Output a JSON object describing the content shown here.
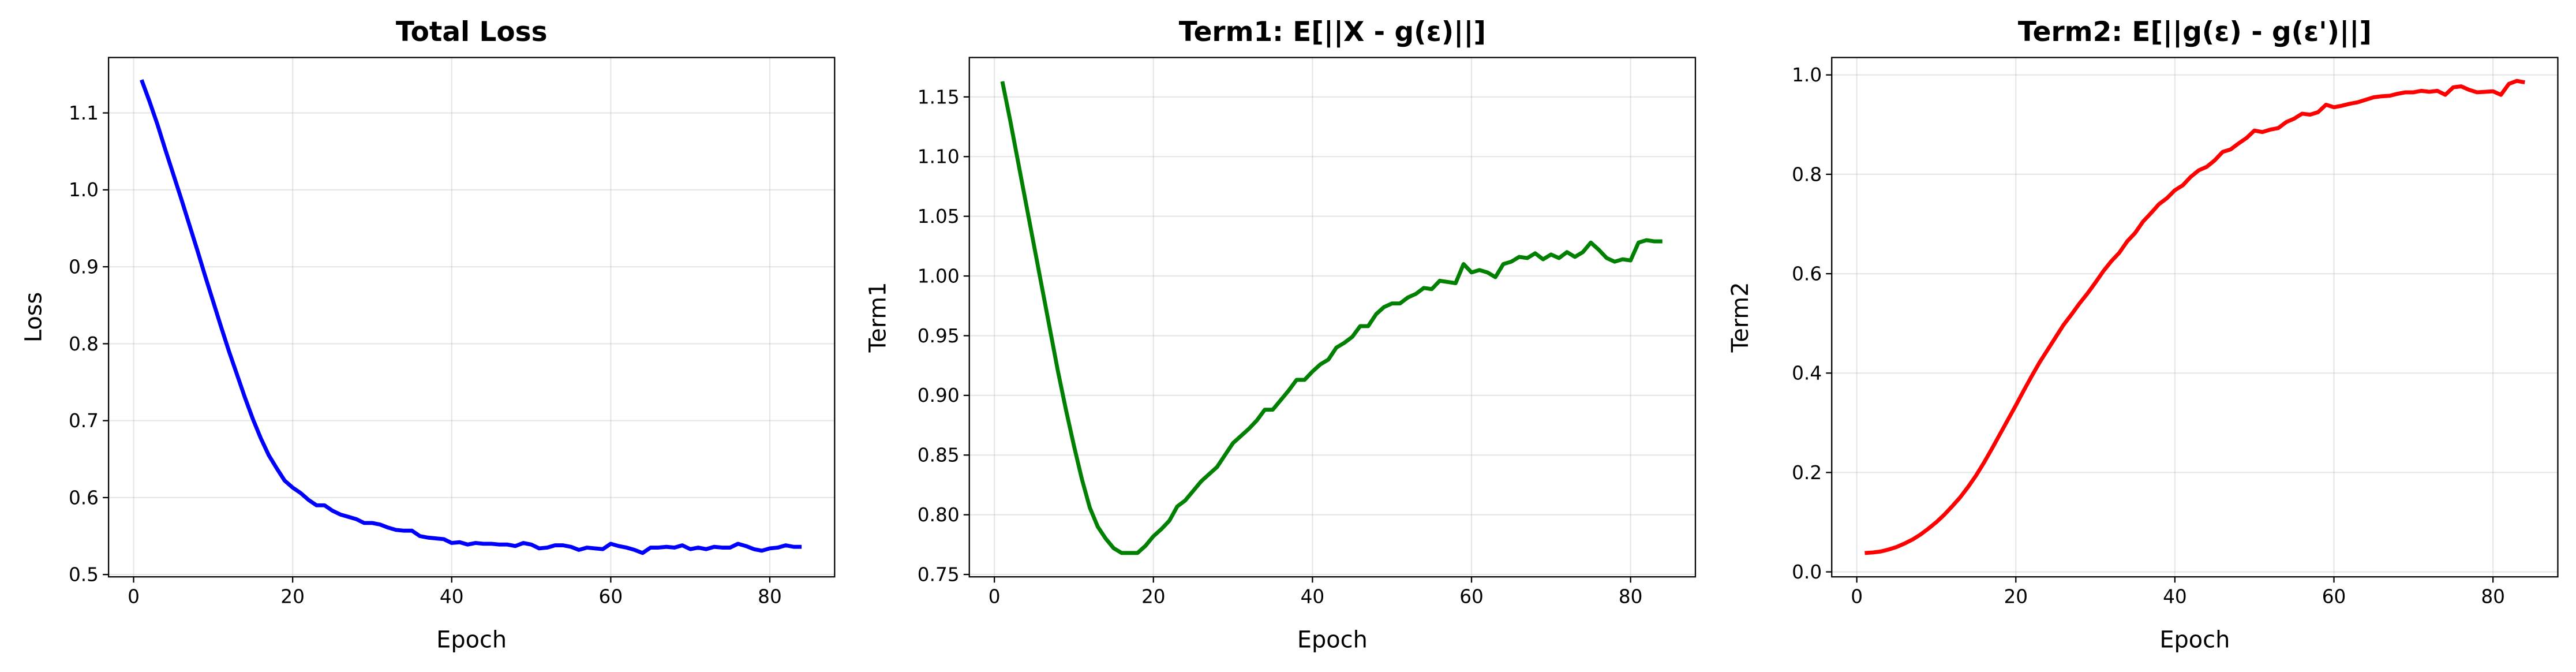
{
  "chart_data": [
    {
      "type": "line",
      "title": "Total Loss",
      "xlabel": "Epoch",
      "ylabel": "Loss",
      "color": "#0000ff",
      "grid": true,
      "x": [
        1,
        2,
        3,
        4,
        5,
        6,
        7,
        8,
        9,
        10,
        11,
        12,
        13,
        14,
        15,
        16,
        17,
        18,
        19,
        20,
        21,
        22,
        23,
        24,
        25,
        26,
        27,
        28,
        29,
        30,
        31,
        32,
        33,
        34,
        35,
        36,
        37,
        38,
        39,
        40,
        41,
        42,
        43,
        44,
        45,
        46,
        47,
        48,
        49,
        50,
        51,
        52,
        53,
        54,
        55,
        56,
        57,
        58,
        59,
        60,
        61,
        62,
        63,
        64,
        65,
        66,
        67,
        68,
        69,
        70,
        71,
        72,
        73,
        74,
        75,
        76,
        77,
        78,
        79,
        80,
        81,
        82,
        83,
        84
      ],
      "values": [
        1.143,
        1.115,
        1.085,
        1.052,
        1.02,
        0.988,
        0.955,
        0.922,
        0.888,
        0.855,
        0.822,
        0.79,
        0.76,
        0.73,
        0.702,
        0.677,
        0.655,
        0.638,
        0.622,
        0.613,
        0.606,
        0.597,
        0.59,
        0.59,
        0.583,
        0.578,
        0.575,
        0.572,
        0.567,
        0.567,
        0.565,
        0.561,
        0.558,
        0.557,
        0.557,
        0.55,
        0.548,
        0.547,
        0.546,
        0.541,
        0.542,
        0.539,
        0.541,
        0.54,
        0.54,
        0.539,
        0.539,
        0.537,
        0.541,
        0.539,
        0.534,
        0.535,
        0.538,
        0.538,
        0.536,
        0.532,
        0.535,
        0.534,
        0.533,
        0.54,
        0.537,
        0.535,
        0.532,
        0.528,
        0.535,
        0.535,
        0.536,
        0.535,
        0.538,
        0.533,
        0.535,
        0.533,
        0.536,
        0.535,
        0.535,
        0.54,
        0.537,
        0.533,
        0.531,
        0.534,
        0.535,
        0.538,
        0.536,
        0.536
      ],
      "xlim": [
        -3.15,
        88.15
      ],
      "xticks": [
        0,
        20,
        40,
        60,
        80
      ],
      "ylim": [
        0.497,
        1.172
      ],
      "yticks": [
        0.5,
        0.6,
        0.7,
        0.8,
        0.9,
        {
          "value": 1.0,
          "label": "1.0"
        },
        1.1
      ]
    },
    {
      "type": "line",
      "title": "Term1: E[||X - g(ε)||]",
      "xlabel": "Epoch",
      "ylabel": "Term1",
      "color": "#008000",
      "grid": true,
      "x": [
        1,
        2,
        3,
        4,
        5,
        6,
        7,
        8,
        9,
        10,
        11,
        12,
        13,
        14,
        15,
        16,
        17,
        18,
        19,
        20,
        21,
        22,
        23,
        24,
        25,
        26,
        27,
        28,
        29,
        30,
        31,
        32,
        33,
        34,
        35,
        36,
        37,
        38,
        39,
        40,
        41,
        42,
        43,
        44,
        45,
        46,
        47,
        48,
        49,
        50,
        51,
        52,
        53,
        54,
        55,
        56,
        57,
        58,
        59,
        60,
        61,
        62,
        63,
        64,
        65,
        66,
        67,
        68,
        69,
        70,
        71,
        72,
        73,
        74,
        75,
        76,
        77,
        78,
        79,
        80,
        81,
        82,
        83,
        84
      ],
      "values": [
        1.163,
        1.13,
        1.095,
        1.06,
        1.025,
        0.99,
        0.955,
        0.92,
        0.888,
        0.858,
        0.83,
        0.806,
        0.79,
        0.78,
        0.772,
        0.768,
        0.768,
        0.768,
        0.774,
        0.782,
        0.788,
        0.795,
        0.807,
        0.812,
        0.82,
        0.828,
        0.834,
        0.84,
        0.85,
        0.86,
        0.866,
        0.872,
        0.879,
        0.888,
        0.888,
        0.896,
        0.904,
        0.913,
        0.913,
        0.92,
        0.926,
        0.93,
        0.94,
        0.944,
        0.949,
        0.958,
        0.958,
        0.968,
        0.974,
        0.977,
        0.977,
        0.982,
        0.985,
        0.99,
        0.989,
        0.996,
        0.995,
        0.994,
        1.01,
        1.003,
        1.005,
        1.003,
        0.999,
        1.01,
        1.012,
        1.016,
        1.015,
        1.019,
        1.014,
        1.018,
        1.015,
        1.02,
        1.016,
        1.02,
        1.028,
        1.022,
        1.015,
        1.012,
        1.014,
        1.013,
        1.028,
        1.03,
        1.029,
        1.029
      ],
      "xlim": [
        -3.15,
        88.15
      ],
      "xticks": [
        0,
        20,
        40,
        60,
        80
      ],
      "ylim": [
        0.748,
        1.183
      ],
      "yticks": [
        0.75,
        {
          "value": 0.8,
          "label": "0.80"
        },
        0.85,
        {
          "value": 0.9,
          "label": "0.90"
        },
        0.95,
        {
          "value": 1.0,
          "label": "1.00"
        },
        1.05,
        {
          "value": 1.1,
          "label": "1.10"
        },
        1.15
      ]
    },
    {
      "type": "line",
      "title": "Term2: E[||g(ε) - g(ε')||]",
      "xlabel": "Epoch",
      "ylabel": "Term2",
      "color": "#ff0000",
      "grid": true,
      "x": [
        1,
        2,
        3,
        4,
        5,
        6,
        7,
        8,
        9,
        10,
        11,
        12,
        13,
        14,
        15,
        16,
        17,
        18,
        19,
        20,
        21,
        22,
        23,
        24,
        25,
        26,
        27,
        28,
        29,
        30,
        31,
        32,
        33,
        34,
        35,
        36,
        37,
        38,
        39,
        40,
        41,
        42,
        43,
        44,
        45,
        46,
        47,
        48,
        49,
        50,
        51,
        52,
        53,
        54,
        55,
        56,
        57,
        58,
        59,
        60,
        61,
        62,
        63,
        64,
        65,
        66,
        67,
        68,
        69,
        70,
        71,
        72,
        73,
        74,
        75,
        76,
        77,
        78,
        79,
        80,
        81,
        82,
        83,
        84
      ],
      "values": [
        0.038,
        0.039,
        0.041,
        0.045,
        0.05,
        0.057,
        0.065,
        0.075,
        0.087,
        0.1,
        0.115,
        0.132,
        0.15,
        0.171,
        0.194,
        0.22,
        0.248,
        0.277,
        0.306,
        0.335,
        0.365,
        0.394,
        0.422,
        0.447,
        0.472,
        0.497,
        0.518,
        0.54,
        0.56,
        0.582,
        0.605,
        0.625,
        0.642,
        0.665,
        0.682,
        0.705,
        0.722,
        0.74,
        0.752,
        0.768,
        0.778,
        0.795,
        0.808,
        0.815,
        0.828,
        0.845,
        0.85,
        0.862,
        0.873,
        0.888,
        0.885,
        0.89,
        0.893,
        0.905,
        0.912,
        0.922,
        0.92,
        0.925,
        0.94,
        0.935,
        0.938,
        0.942,
        0.945,
        0.95,
        0.955,
        0.957,
        0.958,
        0.962,
        0.965,
        0.965,
        0.968,
        0.966,
        0.968,
        0.96,
        0.975,
        0.977,
        0.97,
        0.965,
        0.966,
        0.967,
        0.96,
        0.982,
        0.988,
        0.985
      ],
      "xlim": [
        -3.15,
        88.15
      ],
      "xticks": [
        0,
        20,
        40,
        60,
        80
      ],
      "ylim": [
        -0.01,
        1.035
      ],
      "yticks": [
        {
          "value": 0.0,
          "label": "0.0"
        },
        0.2,
        0.4,
        0.6,
        0.8,
        {
          "value": 1.0,
          "label": "1.0"
        }
      ]
    }
  ]
}
